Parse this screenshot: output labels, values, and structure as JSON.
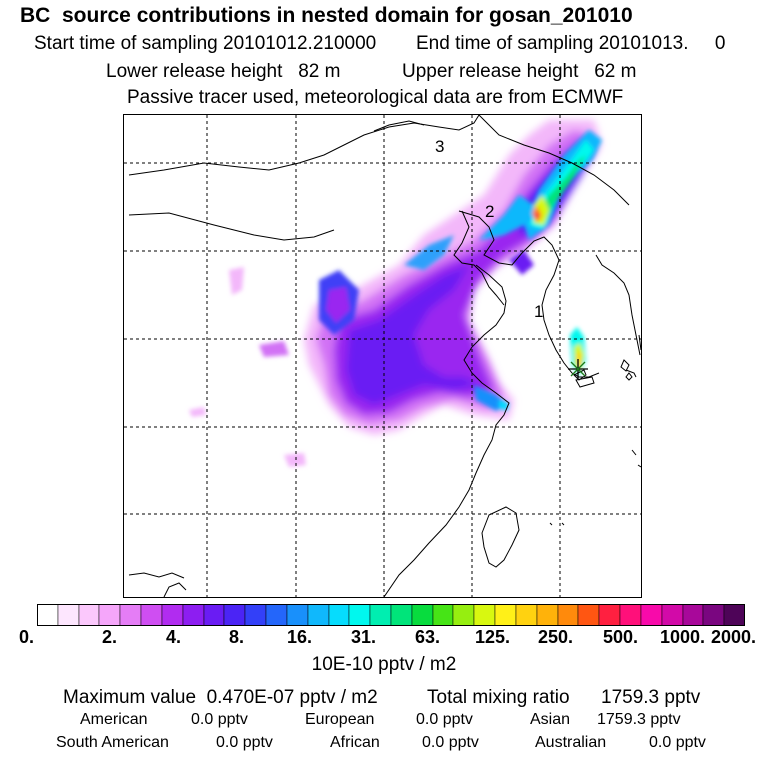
{
  "header": {
    "title": "BC  source contributions in nested domain for gosan_201010",
    "start_label": "Start time of sampling 20101012.210000",
    "end_label": "End time of sampling 20101013.     0",
    "lower_label": "Lower release height   82 m",
    "upper_label": "Upper release height   62 m",
    "tracer_label": "Passive tracer used, meteorological data are from ECMWF"
  },
  "map": {
    "region_labels": [
      "1",
      "2",
      "3"
    ],
    "receptor_marker": "asterisk-marker"
  },
  "colorbar": {
    "ticks": [
      "0.",
      "2.",
      "4.",
      "8.",
      "16.",
      "31.",
      "63.",
      "125.",
      "250.",
      "500.",
      "1000.",
      "2000."
    ],
    "unit": "10E-10 pptv / m2",
    "colors": [
      "#ffffff",
      "#fde6fe",
      "#fbc8fc",
      "#f5a6fa",
      "#e57df6",
      "#cf4ef2",
      "#b12cf0",
      "#8d1ef1",
      "#6a1cf3",
      "#4b24f5",
      "#3340f8",
      "#2466fa",
      "#1990fb",
      "#10b8fc",
      "#06dcfd",
      "#00f8ee",
      "#00eeb0",
      "#00e47a",
      "#08dc3e",
      "#46e416",
      "#96ee10",
      "#d8f810",
      "#fff018",
      "#ffd210",
      "#ffb20a",
      "#ff8a0c",
      "#ff5612",
      "#ff2040",
      "#ff107a",
      "#f80aaa",
      "#d20aa8",
      "#a8089a",
      "#7a0680",
      "#4e0458"
    ]
  },
  "stats": {
    "max_label": "Maximum value  0.470E-07 pptv / m2",
    "total_label": "Total mixing ratio",
    "total_value": "1759.3 pptv",
    "american_label": "American",
    "american_value": "0.0 pptv",
    "european_label": "European",
    "european_value": "0.0 pptv",
    "asian_label": "Asian",
    "asian_value": "1759.3 pptv",
    "south_american_label": "South American",
    "south_american_value": "0.0 pptv",
    "african_label": "African",
    "african_value": "0.0 pptv",
    "australian_label": "Australian",
    "australian_value": "0.0 pptv"
  }
}
